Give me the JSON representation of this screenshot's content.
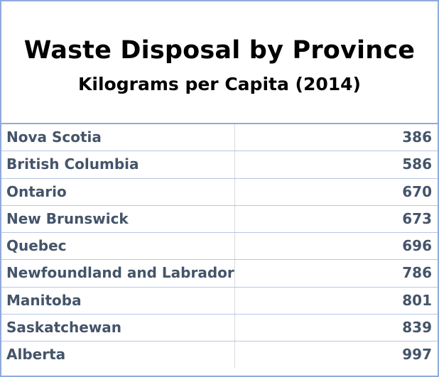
{
  "chart_data": {
    "type": "table",
    "title": "Waste Disposal by Province",
    "subtitle": "Kilograms per Capita (2014)",
    "rows": [
      {
        "province": "Nova Scotia",
        "value": 386
      },
      {
        "province": "British Columbia",
        "value": 586
      },
      {
        "province": "Ontario",
        "value": 670
      },
      {
        "province": "New Brunswick",
        "value": 673
      },
      {
        "province": "Quebec",
        "value": 696
      },
      {
        "province": "Newfoundland and Labrador",
        "value": 786
      },
      {
        "province": "Manitoba",
        "value": 801
      },
      {
        "province": "Saskatchewan",
        "value": 839
      },
      {
        "province": "Alberta",
        "value": 997
      }
    ]
  },
  "colors": {
    "border": "#8faadc",
    "row_divider": "#b4c7e7",
    "text": "#44546a",
    "title_text": "#000000"
  }
}
